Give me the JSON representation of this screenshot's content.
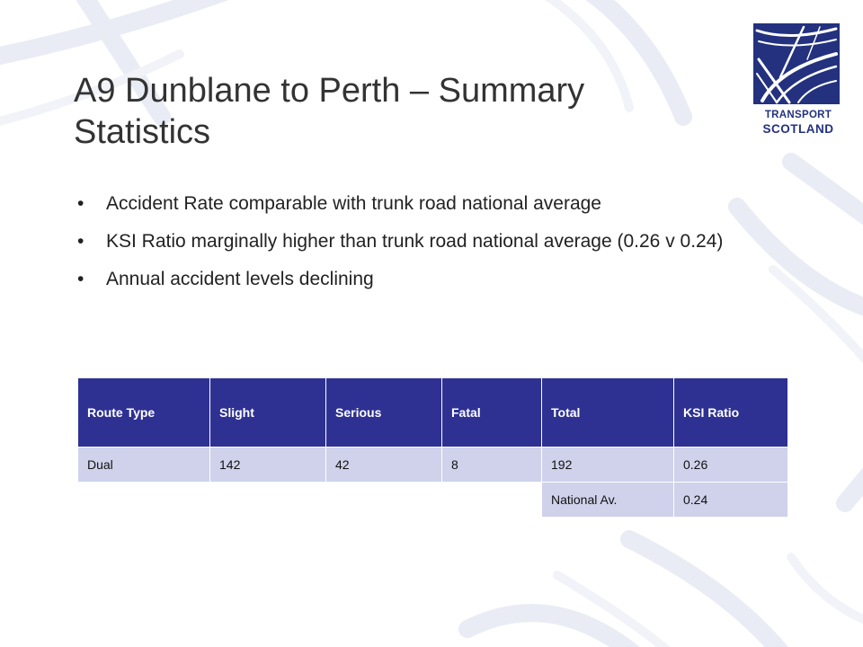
{
  "slide": {
    "title": "A9 Dunblane to Perth – Summary Statistics",
    "bullets": [
      "Accident Rate comparable with trunk road national average",
      "KSI Ratio marginally higher than trunk road national average (0.26 v 0.24)",
      "Annual accident levels declining"
    ],
    "bullet_glyph": "•"
  },
  "logo": {
    "line1": "TRANSPORT",
    "line2": "SCOTLAND",
    "color": "#23317f",
    "icon": "road-junction-icon"
  },
  "table": {
    "headers": [
      "Route Type",
      "Slight",
      "Serious",
      "Fatal",
      "Total",
      "KSI Ratio"
    ],
    "rows": [
      [
        "Dual",
        "142",
        "42",
        "8",
        "192",
        "0.26"
      ]
    ],
    "national_row": {
      "label": "National Av.",
      "value": "0.24"
    },
    "header_color": "#2e3192",
    "cell_color": "#cfd2ea"
  }
}
